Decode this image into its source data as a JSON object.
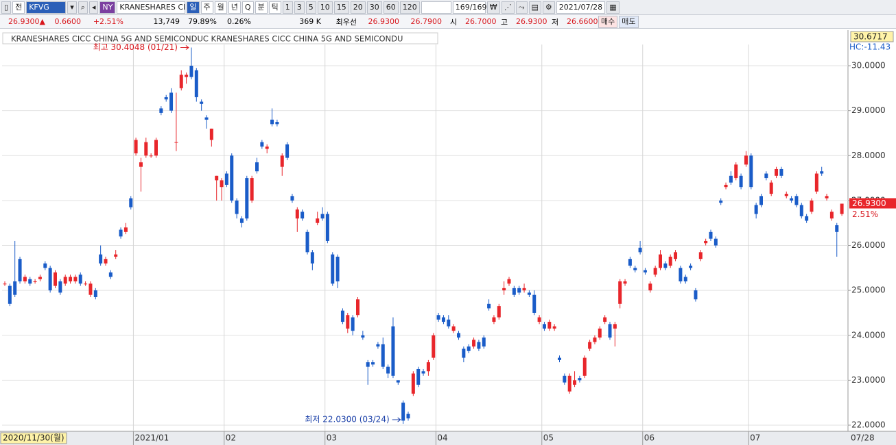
{
  "toolbar": {
    "row1": [
      "전",
      "KFVG",
      "NY",
      "KRANESHARES CICC",
      "일",
      "주",
      "월",
      "년",
      "Q",
      "분",
      "틱",
      "1",
      "3",
      "5",
      "10",
      "15",
      "20",
      "30",
      "60",
      "120",
      "169/169",
      "2021/07/28"
    ],
    "row2": [
      "26.9300▲",
      "0.6600",
      "+2.51%",
      "13,749",
      "79.89%",
      "0.26%",
      "369 K",
      "최우선",
      "26.9300",
      "26.7900",
      "시",
      "26.7000",
      "고",
      "26.9300",
      "저",
      "26.6600",
      "매수",
      "매도"
    ]
  },
  "chart_data": {
    "type": "candlestick",
    "title": "KRANESHARES CICC CHINA 5G AND SEMICONDUC  KRANESHARES CICC CHINA 5G AND SEMICONDU",
    "up_color": "#e8262b",
    "down_color": "#1a5cc8",
    "grid": true,
    "ylim": [
      21.863,
      30.747
    ],
    "yticks": [
      {
        "value": 22,
        "label": "22.0000"
      },
      {
        "value": 23,
        "label": "23.0000"
      },
      {
        "value": 24,
        "label": "24.0000"
      },
      {
        "value": 25,
        "label": "25.0000"
      },
      {
        "value": 26,
        "label": "26.0000"
      },
      {
        "value": 27,
        "label": "27.0000"
      },
      {
        "value": 28,
        "label": "28.0000"
      },
      {
        "value": 29,
        "label": "29.0000"
      },
      {
        "value": 30,
        "label": "30.0000"
      }
    ],
    "xticks": [
      {
        "value": 26,
        "label": "2021/01"
      },
      {
        "value": 44,
        "label": "02"
      },
      {
        "value": 64,
        "label": "03"
      },
      {
        "value": 86,
        "label": "04"
      },
      {
        "value": 107,
        "label": "05"
      },
      {
        "value": 127,
        "label": "06"
      },
      {
        "value": 148,
        "label": "07"
      }
    ],
    "start_date": "2020/11/30(월)",
    "end_date": "07/28",
    "top_value": "30.6717",
    "hc_label": "HC:-11.43",
    "last_price": {
      "value": 26.93,
      "label": "26.9300"
    },
    "change_pct": "2.51%",
    "high_label": "최고 30.4048 (01/21)",
    "low_label": "최저 22.0300 (03/24)",
    "candles": [
      [
        25.15,
        25.2,
        25.1,
        25.15
      ],
      [
        25.1,
        25.15,
        24.65,
        24.7
      ],
      [
        25.2,
        26.1,
        24.85,
        24.9
      ],
      [
        25.7,
        25.75,
        25.15,
        25.2
      ],
      [
        25.2,
        25.35,
        25.15,
        25.3
      ],
      [
        25.25,
        25.3,
        25.1,
        25.15
      ],
      [
        25.2,
        25.25,
        25.15,
        25.2
      ],
      [
        25.25,
        25.35,
        25.2,
        25.3
      ],
      [
        25.6,
        25.65,
        25.45,
        25.5
      ],
      [
        25.5,
        25.55,
        24.95,
        25.0
      ],
      [
        25.1,
        25.45,
        25.05,
        25.4
      ],
      [
        25.2,
        25.25,
        24.9,
        24.95
      ],
      [
        25.15,
        25.35,
        25.1,
        25.3
      ],
      [
        25.2,
        25.35,
        25.15,
        25.3
      ],
      [
        25.2,
        25.35,
        25.15,
        25.3
      ],
      [
        25.35,
        25.4,
        25.1,
        25.15
      ],
      [
        25.15,
        25.2,
        25.1,
        25.15
      ],
      [
        24.9,
        25.2,
        24.85,
        25.15
      ],
      [
        25.0,
        25.05,
        24.8,
        24.85
      ],
      [
        25.8,
        26.0,
        25.55,
        25.6
      ],
      [
        25.6,
        25.75,
        25.55,
        25.7
      ],
      [
        25.4,
        25.45,
        25.25,
        25.3
      ],
      [
        25.75,
        25.9,
        25.7,
        25.8
      ],
      [
        26.35,
        26.4,
        26.15,
        26.2
      ],
      [
        26.3,
        26.5,
        26.25,
        26.4
      ],
      [
        27.05,
        27.1,
        26.8,
        26.85
      ],
      [
        28.05,
        28.4,
        28.0,
        28.35
      ],
      [
        27.75,
        27.95,
        27.2,
        27.85
      ],
      [
        28.0,
        28.4,
        27.95,
        28.3
      ],
      [
        28.0,
        28.05,
        27.95,
        28.0
      ],
      [
        28.0,
        28.4,
        27.95,
        28.35
      ],
      [
        29.05,
        29.1,
        28.9,
        28.95
      ],
      [
        29.3,
        29.35,
        29.2,
        29.25
      ],
      [
        29.4,
        29.5,
        28.95,
        29.0
      ],
      [
        28.3,
        29.4,
        28.1,
        28.3
      ],
      [
        29.5,
        29.9,
        29.45,
        29.8
      ],
      [
        29.75,
        29.85,
        29.6,
        29.8
      ],
      [
        30.0,
        30.4048,
        29.7,
        29.75
      ],
      [
        29.9,
        29.95,
        29.2,
        29.3
      ],
      [
        29.2,
        29.25,
        29.0,
        29.15
      ],
      [
        28.85,
        28.9,
        28.6,
        28.8
      ],
      [
        28.35,
        28.6,
        28.2,
        28.6
      ],
      [
        27.45,
        27.55,
        27.0,
        27.55
      ],
      [
        27.3,
        27.5,
        27.0,
        27.45
      ],
      [
        27.6,
        27.65,
        27.3,
        27.35
      ],
      [
        28.0,
        28.05,
        26.95,
        27.0
      ],
      [
        27.0,
        27.05,
        26.6,
        26.7
      ],
      [
        26.6,
        26.65,
        26.4,
        26.5
      ],
      [
        27.5,
        27.55,
        26.55,
        26.6
      ],
      [
        27.0,
        27.55,
        26.95,
        27.5
      ],
      [
        27.85,
        27.95,
        27.6,
        27.65
      ],
      [
        28.3,
        28.35,
        28.15,
        28.2
      ],
      [
        28.15,
        28.25,
        28.05,
        28.2
      ],
      [
        28.8,
        29.05,
        28.65,
        28.7
      ],
      [
        28.75,
        28.8,
        28.65,
        28.7
      ],
      [
        27.75,
        28.05,
        27.55,
        28.0
      ],
      [
        28.25,
        28.3,
        27.9,
        27.95
      ],
      [
        27.1,
        27.15,
        26.95,
        27.0
      ],
      [
        26.6,
        26.85,
        26.3,
        26.8
      ],
      [
        26.75,
        26.8,
        26.55,
        26.6
      ],
      [
        26.3,
        26.35,
        25.8,
        25.85
      ],
      [
        25.85,
        25.9,
        25.45,
        25.6
      ],
      [
        26.5,
        26.75,
        26.45,
        26.6
      ],
      [
        26.7,
        26.85,
        26.55,
        26.6
      ],
      [
        26.7,
        26.75,
        26.05,
        26.1
      ],
      [
        25.8,
        25.85,
        25.1,
        25.15
      ],
      [
        25.75,
        25.8,
        25.05,
        25.2
      ],
      [
        24.55,
        24.6,
        24.25,
        24.3
      ],
      [
        24.15,
        24.5,
        24.05,
        24.45
      ],
      [
        24.4,
        24.45,
        24.0,
        24.1
      ],
      [
        24.45,
        24.85,
        24.4,
        24.8
      ],
      [
        24.0,
        24.1,
        23.9,
        23.95
      ],
      [
        23.4,
        23.45,
        22.9,
        23.3
      ],
      [
        23.4,
        23.45,
        23.3,
        23.35
      ],
      [
        23.8,
        23.85,
        23.7,
        23.75
      ],
      [
        23.8,
        23.95,
        23.25,
        23.3
      ],
      [
        23.3,
        23.35,
        23.05,
        23.15
      ],
      [
        24.2,
        24.4,
        23.05,
        23.1
      ],
      [
        23.0,
        23.0,
        22.9,
        22.95
      ],
      [
        22.5,
        22.55,
        22.03,
        22.1
      ],
      [
        22.25,
        22.3,
        22.1,
        22.15
      ],
      [
        22.7,
        23.2,
        22.65,
        23.15
      ],
      [
        23.25,
        23.3,
        22.85,
        22.9
      ],
      [
        23.2,
        23.25,
        23.1,
        23.15
      ],
      [
        23.2,
        23.45,
        23.1,
        23.4
      ],
      [
        23.5,
        24.05,
        23.45,
        24.0
      ],
      [
        24.45,
        24.5,
        24.3,
        24.35
      ],
      [
        24.4,
        24.45,
        24.25,
        24.3
      ],
      [
        24.35,
        24.45,
        24.15,
        24.2
      ],
      [
        24.1,
        24.25,
        24.05,
        24.2
      ],
      [
        24.05,
        24.1,
        23.9,
        23.95
      ],
      [
        23.7,
        23.75,
        23.4,
        23.5
      ],
      [
        23.75,
        23.8,
        23.6,
        23.65
      ],
      [
        23.75,
        23.95,
        23.7,
        23.9
      ],
      [
        23.85,
        23.9,
        23.65,
        23.7
      ],
      [
        23.95,
        24.0,
        23.7,
        23.75
      ],
      [
        24.7,
        24.8,
        24.55,
        24.6
      ],
      [
        24.3,
        24.45,
        24.25,
        24.4
      ],
      [
        24.4,
        24.7,
        24.35,
        24.65
      ],
      [
        25.0,
        25.2,
        24.9,
        25.05
      ],
      [
        25.15,
        25.3,
        25.1,
        25.25
      ],
      [
        25.05,
        25.1,
        24.85,
        24.9
      ],
      [
        25.05,
        25.1,
        24.9,
        24.95
      ],
      [
        25.0,
        25.15,
        24.95,
        25.05
      ],
      [
        24.95,
        25.0,
        24.85,
        24.9
      ],
      [
        24.9,
        25.0,
        24.45,
        24.5
      ],
      [
        24.3,
        24.45,
        24.25,
        24.4
      ],
      [
        24.25,
        24.3,
        24.1,
        24.15
      ],
      [
        24.15,
        24.35,
        24.1,
        24.3
      ],
      [
        24.15,
        24.25,
        24.1,
        24.2
      ],
      [
        23.5,
        23.55,
        23.4,
        23.45
      ],
      [
        23.1,
        23.15,
        22.9,
        22.95
      ],
      [
        22.75,
        23.15,
        22.7,
        23.1
      ],
      [
        22.9,
        23.2,
        22.85,
        23.0
      ],
      [
        23.05,
        23.1,
        22.95,
        23.0
      ],
      [
        23.1,
        23.55,
        23.05,
        23.5
      ],
      [
        23.7,
        23.9,
        23.65,
        23.85
      ],
      [
        23.85,
        24.0,
        23.8,
        23.95
      ],
      [
        23.95,
        24.2,
        23.9,
        24.15
      ],
      [
        24.3,
        24.45,
        24.25,
        24.4
      ],
      [
        24.25,
        24.3,
        23.9,
        23.95
      ],
      [
        24.15,
        24.3,
        23.75,
        24.25
      ],
      [
        24.7,
        25.25,
        24.6,
        25.2
      ],
      [
        25.15,
        25.25,
        25.1,
        25.2
      ],
      [
        25.7,
        25.75,
        25.5,
        25.55
      ],
      [
        25.5,
        25.55,
        25.4,
        25.45
      ],
      [
        25.95,
        26.1,
        25.8,
        25.85
      ],
      [
        25.45,
        25.5,
        25.35,
        25.4
      ],
      [
        25.0,
        25.2,
        24.95,
        25.15
      ],
      [
        25.35,
        25.55,
        25.3,
        25.5
      ],
      [
        25.5,
        25.9,
        25.45,
        25.8
      ],
      [
        25.6,
        25.65,
        25.45,
        25.5
      ],
      [
        25.55,
        25.8,
        25.5,
        25.75
      ],
      [
        25.7,
        25.9,
        25.65,
        25.85
      ],
      [
        25.5,
        25.55,
        25.15,
        25.2
      ],
      [
        25.3,
        25.35,
        25.15,
        25.2
      ],
      [
        25.55,
        25.6,
        25.45,
        25.5
      ],
      [
        25.0,
        25.05,
        24.75,
        24.8
      ],
      [
        25.7,
        25.9,
        25.65,
        25.85
      ],
      [
        26.05,
        26.15,
        26.0,
        26.1
      ],
      [
        26.3,
        26.35,
        26.1,
        26.15
      ],
      [
        26.15,
        26.2,
        25.95,
        26.0
      ],
      [
        27.0,
        27.05,
        26.9,
        26.95
      ],
      [
        27.3,
        27.4,
        27.25,
        27.35
      ],
      [
        27.55,
        27.65,
        27.35,
        27.4
      ],
      [
        27.5,
        27.85,
        27.45,
        27.8
      ],
      [
        27.55,
        27.6,
        27.25,
        27.3
      ],
      [
        27.8,
        28.1,
        27.75,
        28.0
      ],
      [
        28.0,
        28.05,
        27.25,
        27.3
      ],
      [
        26.9,
        26.95,
        26.6,
        26.7
      ],
      [
        27.1,
        27.15,
        26.85,
        26.9
      ],
      [
        27.6,
        27.65,
        27.45,
        27.5
      ],
      [
        27.15,
        27.45,
        27.1,
        27.4
      ],
      [
        27.55,
        27.75,
        27.5,
        27.7
      ],
      [
        27.7,
        27.75,
        27.5,
        27.55
      ],
      [
        27.1,
        27.2,
        27.05,
        27.15
      ],
      [
        27.05,
        27.1,
        26.95,
        27.0
      ],
      [
        27.1,
        27.15,
        26.85,
        26.9
      ],
      [
        26.9,
        26.95,
        26.6,
        26.65
      ],
      [
        26.65,
        26.7,
        26.5,
        26.55
      ],
      [
        26.75,
        27.05,
        26.7,
        27.0
      ],
      [
        27.2,
        27.65,
        27.15,
        27.6
      ],
      [
        27.65,
        27.75,
        27.55,
        27.6
      ],
      [
        27.05,
        27.15,
        27.0,
        27.1
      ],
      [
        26.6,
        26.8,
        26.55,
        26.75
      ],
      [
        26.45,
        26.5,
        25.75,
        26.3
      ],
      [
        26.7,
        26.93,
        26.66,
        26.93
      ]
    ]
  }
}
